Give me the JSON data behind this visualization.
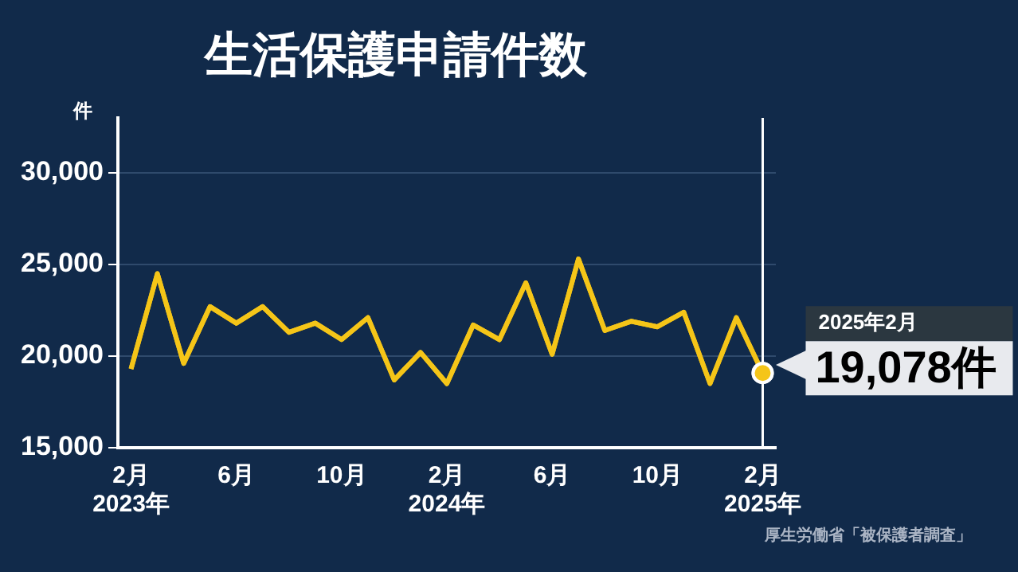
{
  "chart_data": {
    "type": "line",
    "title": "生活保護申請件数",
    "ylabel": "件",
    "categories": [
      "2月\n2023年",
      null,
      null,
      null,
      "6月",
      null,
      null,
      null,
      "10月",
      null,
      null,
      null,
      "2月\n2024年",
      null,
      null,
      null,
      "6月",
      null,
      null,
      null,
      "10月",
      null,
      null,
      null,
      "2月\n2025年"
    ],
    "series": [
      {
        "color": "#f5c518",
        "values": [
          19300,
          24500,
          19600,
          22700,
          21800,
          22700,
          21300,
          21800,
          20900,
          22100,
          18700,
          20200,
          18500,
          21700,
          20900,
          24000,
          20100,
          25300,
          21400,
          21900,
          21600,
          22400,
          18500,
          22100,
          19078
        ],
        "value_labels": [
          null,
          null,
          null,
          null,
          null,
          null,
          null,
          null,
          null,
          null,
          null,
          null,
          null,
          null,
          null,
          null,
          null,
          null,
          null,
          null,
          null,
          null,
          null,
          null,
          "19,078件"
        ]
      }
    ],
    "ylim": [
      15000,
      33000
    ],
    "yticks": [
      {
        "value": 15000,
        "label": "15,000"
      },
      {
        "value": 20000,
        "label": "20,000"
      },
      {
        "value": 25000,
        "label": "25,000"
      },
      {
        "value": 30000,
        "label": "30,000"
      }
    ],
    "grid": "y",
    "legend": false,
    "marker": "none",
    "line_style": "solid",
    "ref_lines": [
      {
        "axis": "x",
        "value": "2月\n2025年",
        "color": "#ffffff"
      }
    ],
    "annotations": [
      "2025年2月",
      "厚生労働省「被保護者調査」"
    ]
  }
}
